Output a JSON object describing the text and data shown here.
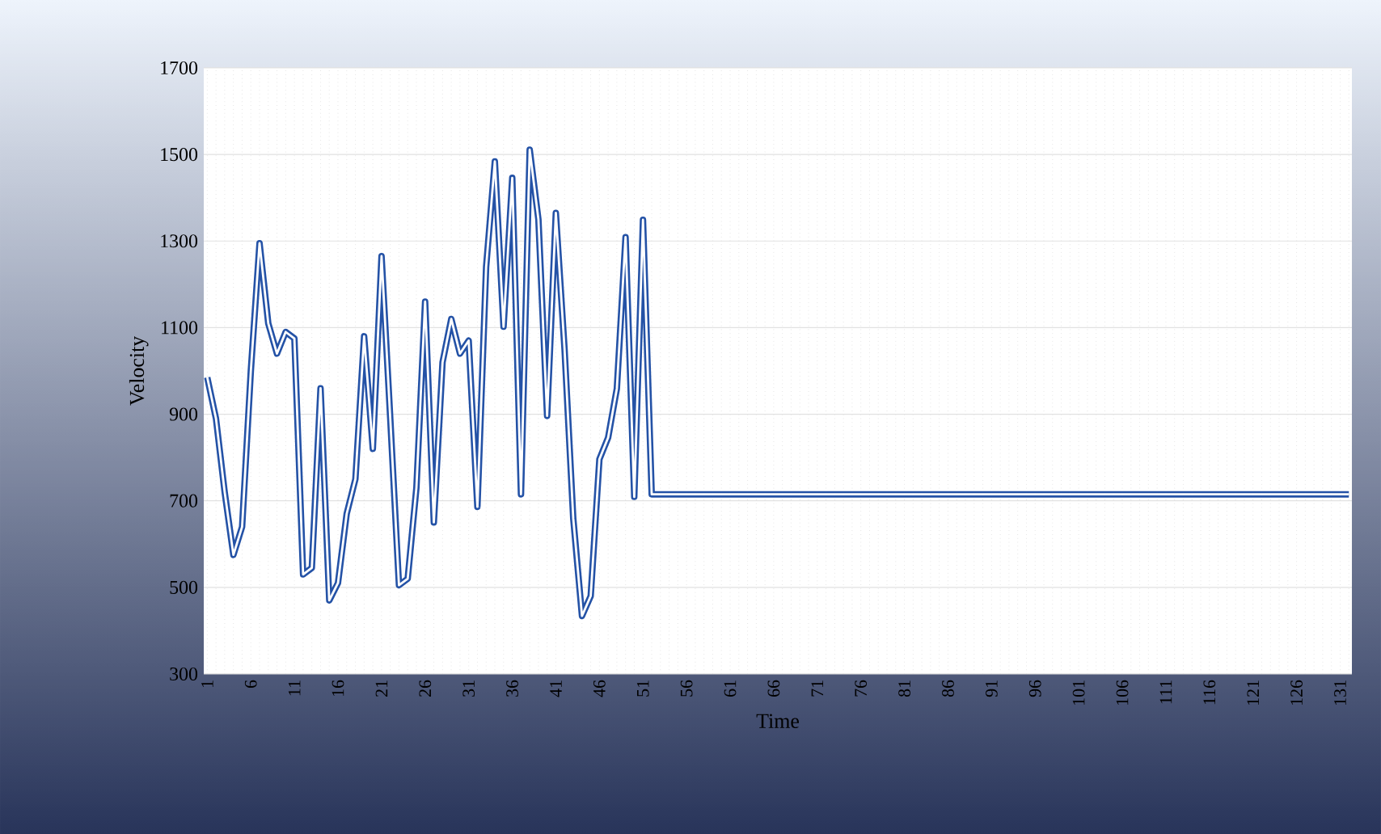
{
  "chart_data": {
    "type": "line",
    "xlabel": "Time",
    "ylabel": "Velocity",
    "categories": [
      "1",
      null,
      null,
      null,
      null,
      "6",
      null,
      null,
      null,
      null,
      "11",
      null,
      null,
      null,
      null,
      "16",
      null,
      null,
      null,
      null,
      "21",
      null,
      null,
      null,
      null,
      "26",
      null,
      null,
      null,
      null,
      "31",
      null,
      null,
      null,
      null,
      "36",
      null,
      null,
      null,
      null,
      "41",
      null,
      null,
      null,
      null,
      "46",
      null,
      null,
      null,
      null,
      "51",
      null,
      null,
      null,
      null,
      "56",
      null,
      null,
      null,
      null,
      "61",
      null,
      null,
      null,
      null,
      "66",
      null,
      null,
      null,
      null,
      "71",
      null,
      null,
      null,
      null,
      "76",
      null,
      null,
      null,
      null,
      "81",
      null,
      null,
      null,
      null,
      "86",
      null,
      null,
      null,
      null,
      "91",
      null,
      null,
      null,
      null,
      "96",
      null,
      null,
      null,
      null,
      "101",
      null,
      null,
      null,
      null,
      "106",
      null,
      null,
      null,
      null,
      "111",
      null,
      null,
      null,
      null,
      "116",
      null,
      null,
      null,
      null,
      "121",
      null,
      null,
      null,
      null,
      "126",
      null,
      null,
      null,
      null,
      "131",
      null
    ],
    "series": [
      {
        "color": "#2452a6",
        "values": [
          985,
          890,
          720,
          575,
          640,
          1000,
          1295,
          1110,
          1040,
          1090,
          1075,
          530,
          545,
          960,
          470,
          510,
          670,
          750,
          1080,
          820,
          1265,
          890,
          505,
          520,
          730,
          1160,
          650,
          1020,
          1120,
          1040,
          1070,
          686,
          1240,
          1484,
          1102,
          1446,
          715,
          1511,
          1350,
          896,
          1365,
          1050,
          659,
          434,
          480,
          796,
          846,
          959,
          1309,
          709,
          1349,
          715,
          715,
          715,
          715,
          715,
          715,
          715,
          715,
          715,
          715,
          715,
          715,
          715,
          715,
          715,
          715,
          715,
          715,
          715,
          715,
          715,
          715,
          715,
          715,
          715,
          715,
          715,
          715,
          715,
          715,
          715,
          715,
          715,
          715,
          715,
          715,
          715,
          715,
          715,
          715,
          715,
          715,
          715,
          715,
          715,
          715,
          715,
          715,
          715,
          715,
          715,
          715,
          715,
          715,
          715,
          715,
          715,
          715,
          715,
          715,
          715,
          715,
          715,
          715,
          715,
          715,
          715,
          715,
          715,
          715,
          715,
          715,
          715,
          715,
          715,
          715,
          715,
          715,
          715,
          715,
          715
        ]
      }
    ],
    "ylim": [
      300,
      1700
    ],
    "yticks": [
      300,
      500,
      700,
      900,
      1100,
      1300,
      1500,
      1700
    ],
    "grid": true,
    "legend": false,
    "marker": "none",
    "line_style": "solid"
  }
}
